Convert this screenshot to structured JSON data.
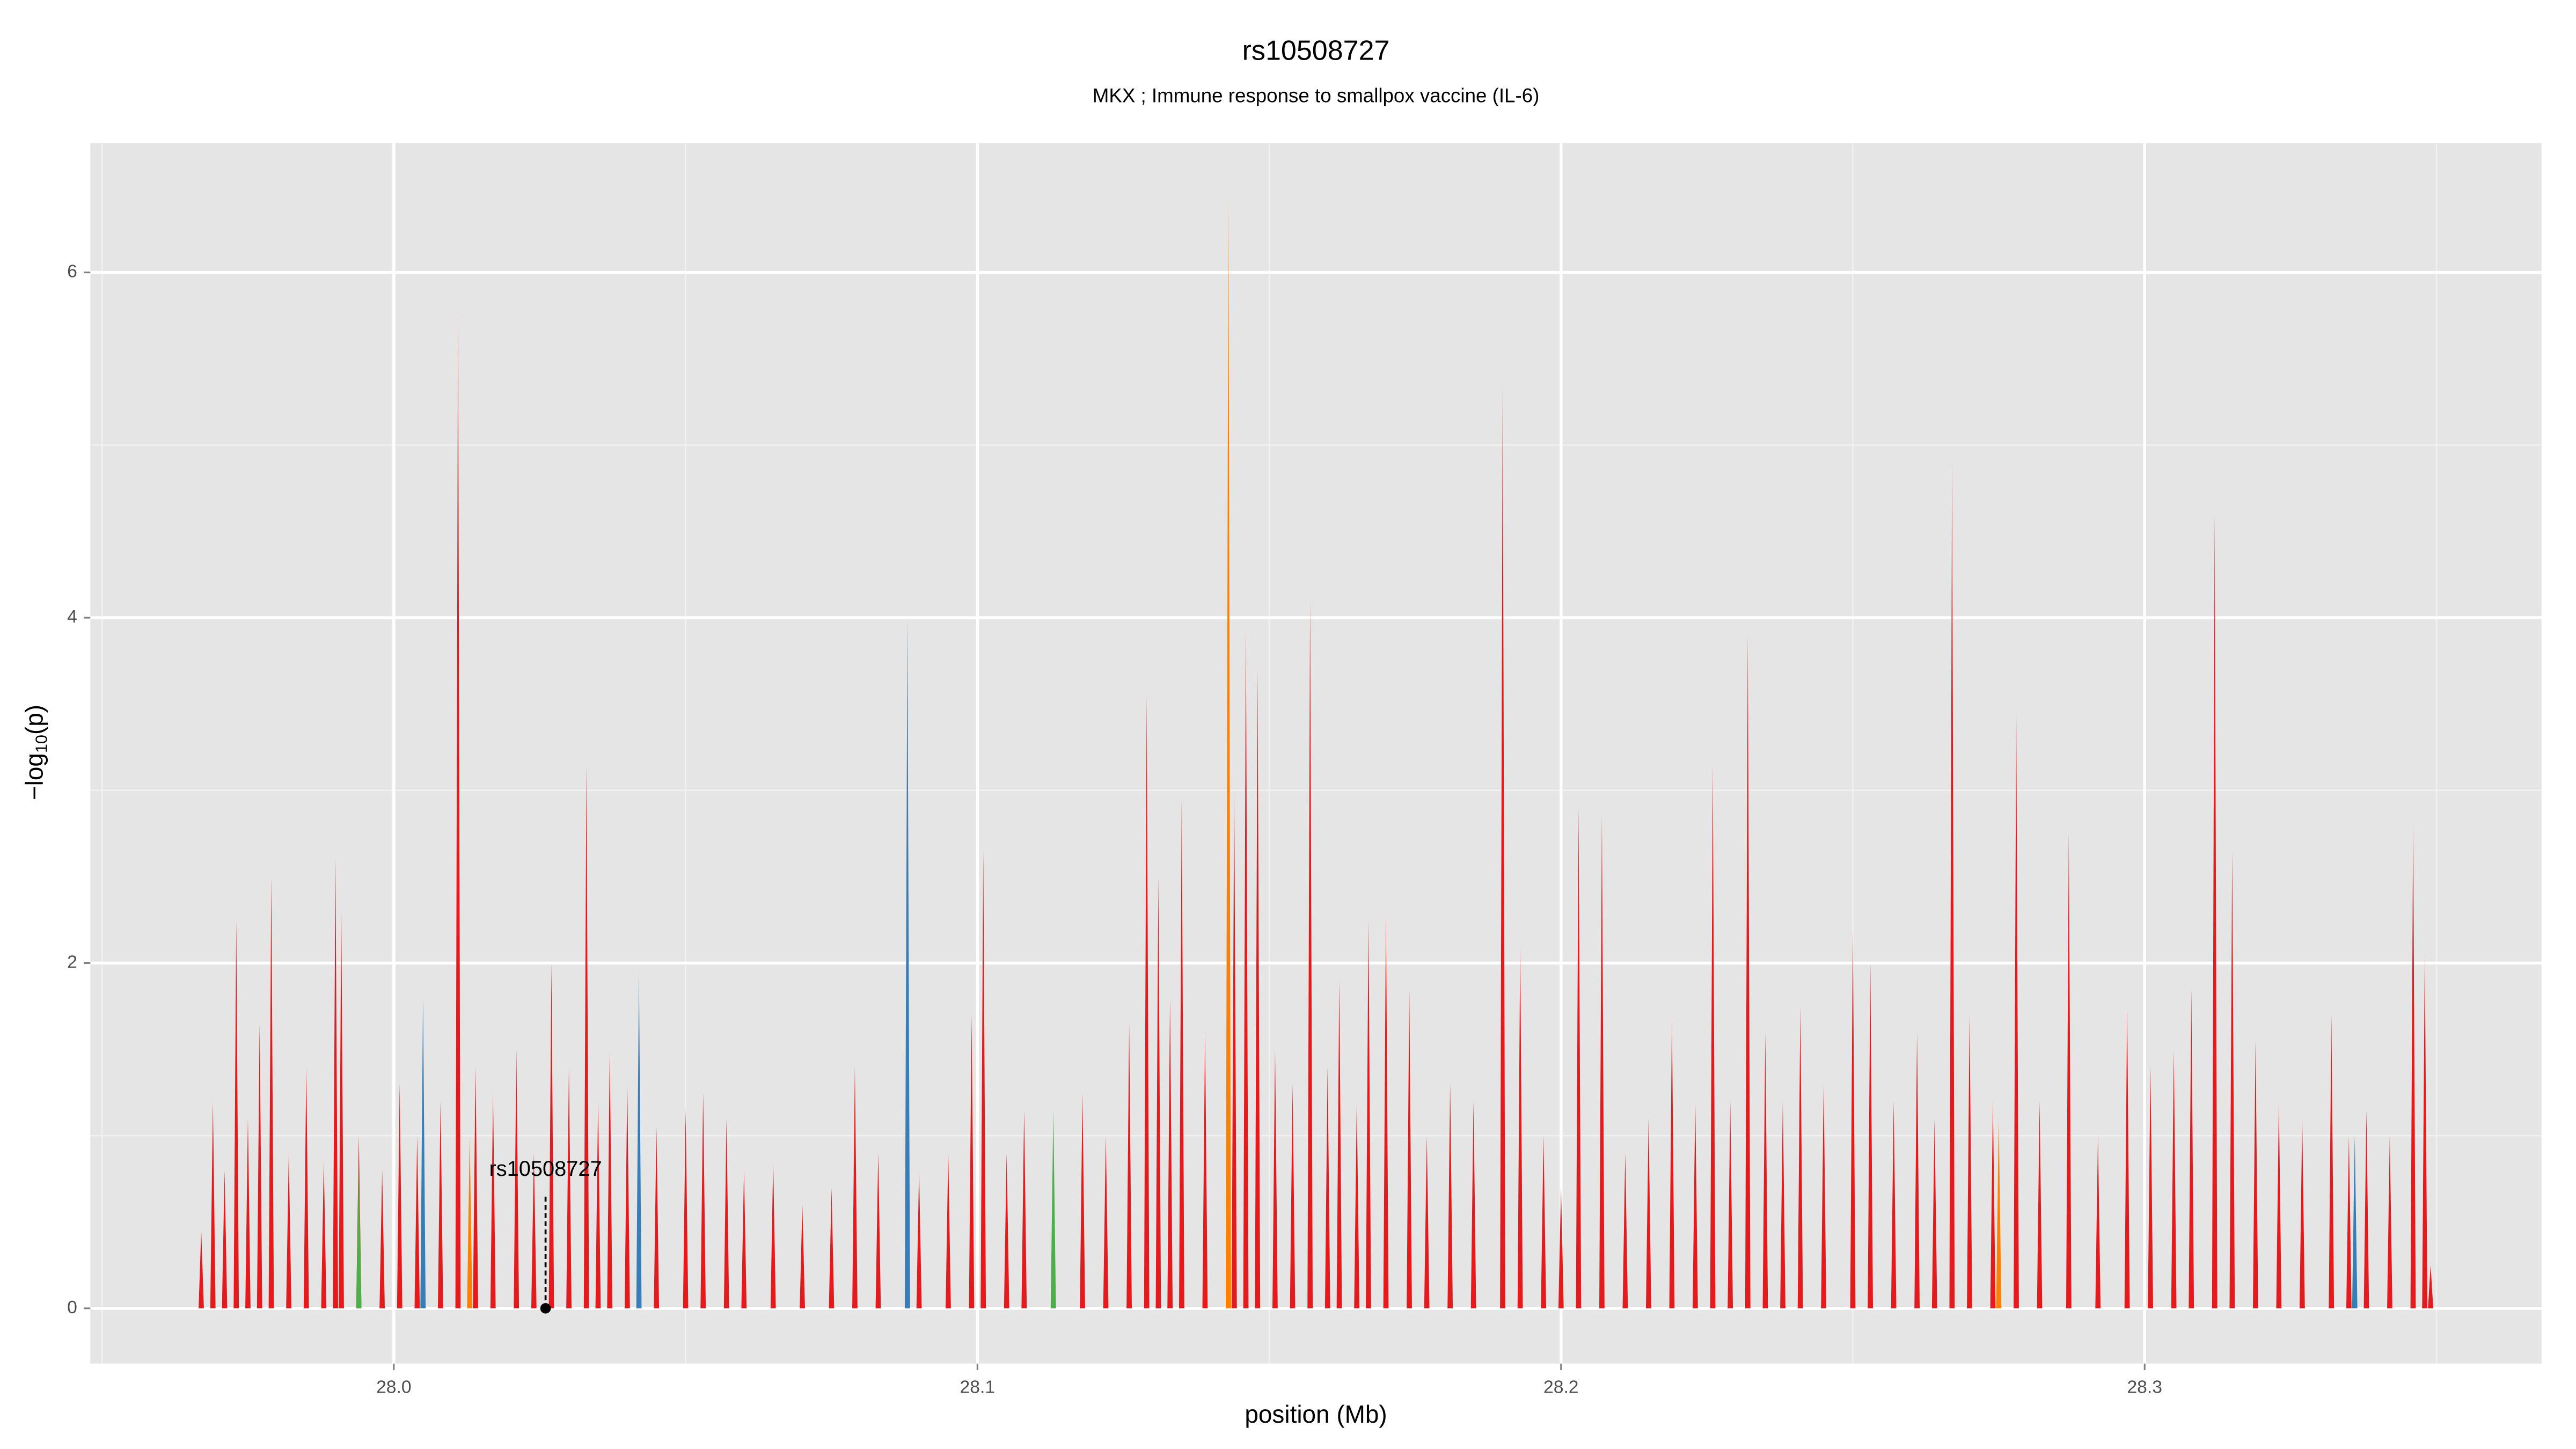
{
  "chart_data": {
    "type": "spike",
    "title": "rs10508727",
    "subtitle": "MKX ; Immune response to smallpox vaccine (IL-6)",
    "xlabel": "position (Mb)",
    "ylabel": {
      "text": "−log",
      "sub": "10",
      "tail": "(p)"
    },
    "xlim": [
      27.948,
      28.368
    ],
    "ylim": [
      -0.32,
      6.75
    ],
    "xticks": [
      {
        "value": 28.0,
        "label": "28.0"
      },
      {
        "value": 28.1,
        "label": "28.1"
      },
      {
        "value": 28.2,
        "label": "28.2"
      },
      {
        "value": 28.3,
        "label": "28.3"
      }
    ],
    "yticks": [
      0,
      2,
      4,
      6
    ],
    "xminor": [
      27.95,
      28.05,
      28.15,
      28.25,
      28.35
    ],
    "yminor": [
      1,
      3,
      5
    ],
    "grid": true,
    "annotation": {
      "label": "rs10508727",
      "x": 28.026,
      "y": 0
    },
    "series": [
      {
        "color": "#e41a1c",
        "x": [
          27.967,
          27.969,
          27.971,
          27.973,
          27.975,
          27.977,
          27.979,
          27.982,
          27.985,
          27.988,
          27.99,
          27.991,
          27.994,
          27.998,
          28.001,
          28.004,
          28.008,
          28.011,
          28.014,
          28.017,
          28.021,
          28.024,
          28.027,
          28.03,
          28.033,
          28.035,
          28.037,
          28.04,
          28.045,
          28.05,
          28.053,
          28.057,
          28.06,
          28.065,
          28.07,
          28.075,
          28.079,
          28.083,
          28.09,
          28.095,
          28.099,
          28.101,
          28.105,
          28.108,
          28.118,
          28.122,
          28.126,
          28.129,
          28.131,
          28.133,
          28.135,
          28.139,
          28.144,
          28.146,
          28.148,
          28.151,
          28.154,
          28.157,
          28.16,
          28.162,
          28.165,
          28.167,
          28.17,
          28.174,
          28.177,
          28.181,
          28.185,
          28.19,
          28.193,
          28.197,
          28.2,
          28.203,
          28.207,
          28.211,
          28.215,
          28.219,
          28.223,
          28.226,
          28.229,
          28.232,
          28.235,
          28.238,
          28.241,
          28.245,
          28.25,
          28.253,
          28.257,
          28.261,
          28.264,
          28.267,
          28.27,
          28.274,
          28.278,
          28.282,
          28.287,
          28.292,
          28.297,
          28.301,
          28.305,
          28.308,
          28.312,
          28.315,
          28.319,
          28.323,
          28.327,
          28.332,
          28.335,
          28.338,
          28.342,
          28.346,
          28.348,
          28.349
        ],
        "values": [
          0.45,
          1.2,
          0.8,
          2.25,
          1.1,
          1.65,
          2.5,
          0.9,
          1.4,
          0.85,
          2.6,
          2.3,
          1.0,
          0.8,
          1.3,
          1.0,
          1.2,
          5.8,
          1.4,
          1.25,
          1.5,
          0.9,
          2.0,
          1.4,
          3.15,
          1.2,
          1.5,
          1.3,
          1.05,
          1.15,
          1.25,
          1.1,
          0.8,
          0.85,
          0.6,
          0.7,
          1.4,
          0.9,
          0.8,
          0.9,
          1.7,
          2.65,
          0.9,
          1.15,
          1.25,
          1.0,
          1.65,
          3.55,
          2.5,
          1.8,
          2.95,
          1.6,
          3.0,
          3.95,
          3.7,
          1.5,
          1.3,
          4.1,
          1.4,
          1.9,
          1.2,
          2.25,
          2.3,
          1.85,
          1.0,
          1.3,
          1.2,
          5.35,
          2.1,
          1.0,
          0.7,
          2.9,
          2.85,
          0.9,
          1.1,
          1.7,
          1.2,
          3.15,
          1.2,
          3.9,
          1.6,
          1.2,
          1.75,
          1.3,
          2.2,
          2.0,
          1.2,
          1.6,
          1.1,
          4.9,
          1.7,
          1.2,
          3.45,
          1.2,
          2.75,
          1.0,
          1.75,
          1.4,
          1.5,
          1.85,
          4.6,
          2.65,
          1.55,
          1.2,
          1.1,
          1.7,
          1.0,
          1.15,
          1.0,
          2.8,
          2.05,
          0.25
        ]
      },
      {
        "color": "#ff7f00",
        "x": [
          28.013,
          28.143,
          28.275
        ],
        "values": [
          1.0,
          6.45,
          1.1
        ]
      },
      {
        "color": "#377eb8",
        "x": [
          28.005,
          28.042,
          28.088,
          28.336
        ],
        "values": [
          1.8,
          1.95,
          4.0,
          1.0
        ]
      },
      {
        "color": "#4daf4a",
        "x": [
          27.994,
          28.113
        ],
        "values": [
          0.85,
          1.15
        ]
      }
    ]
  }
}
